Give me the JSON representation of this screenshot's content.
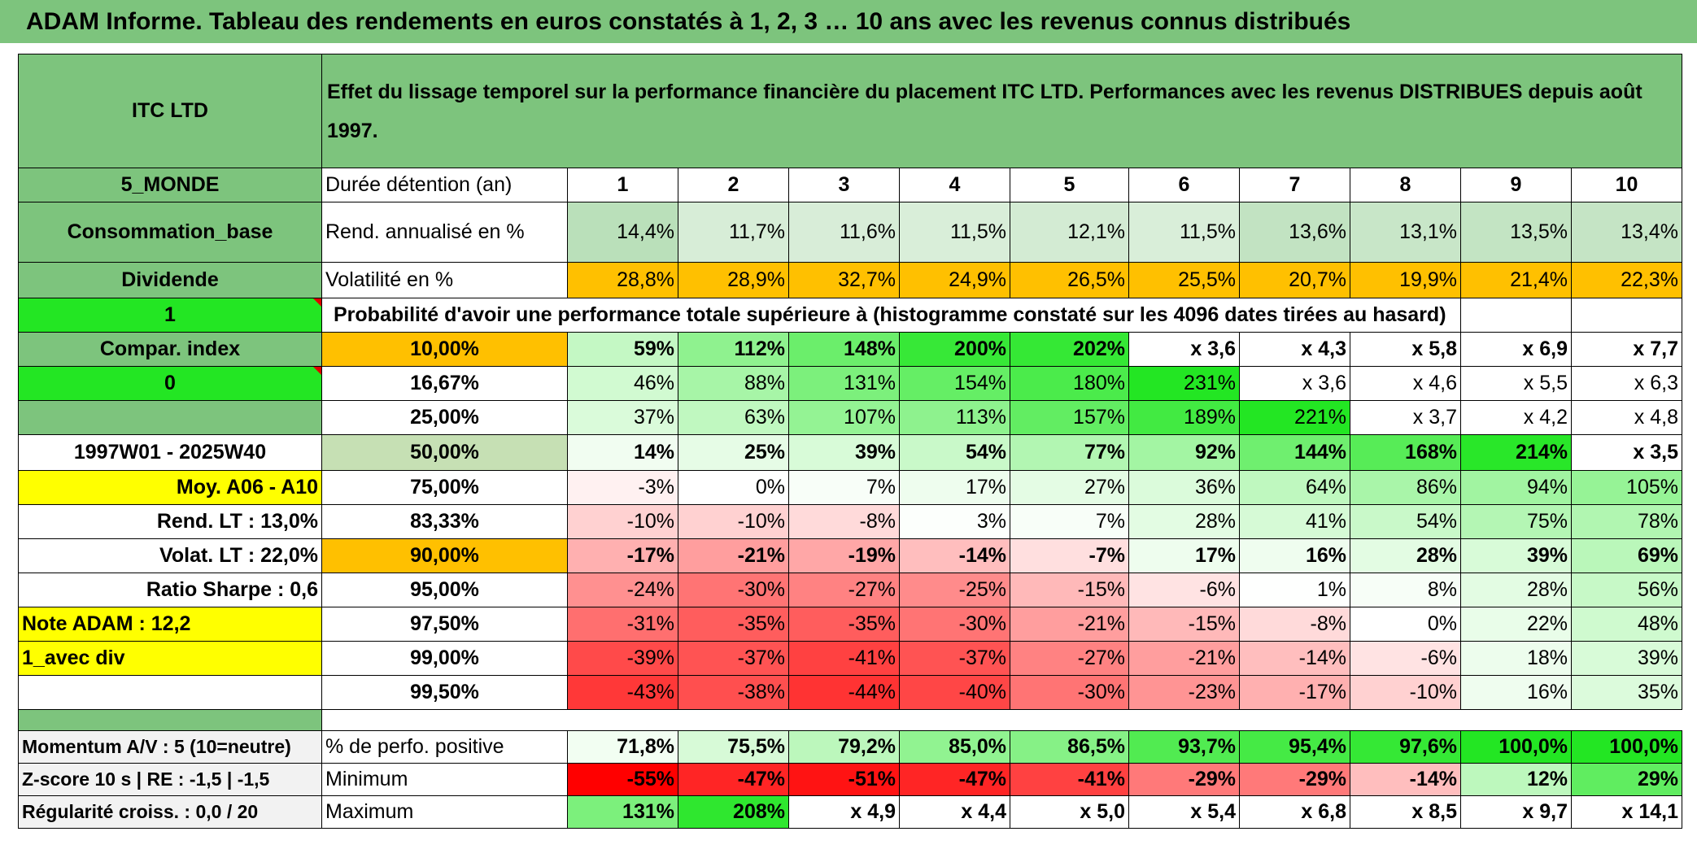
{
  "title": "ADAM Informe. Tableau des rendements en euros constatés à 1, 2, 3 … 10 ans avec les revenus connus distribués",
  "header": {
    "fund": "ITC LTD",
    "description": "Effet du lissage temporel sur la performance financière du placement ITC LTD. Performances avec les revenus DISTRIBUES depuis août 1997."
  },
  "side": {
    "zone": "5_MONDE",
    "sector": "Consommation_base",
    "dividend_label": "Dividende",
    "dividend_value": "1",
    "compar_label": "Compar. index",
    "compar_value": "0",
    "period": "1997W01 - 2025W40",
    "moy": "Moy. A06 - A10",
    "rend_lt": "Rend. LT :   13,0%",
    "volat_lt": "Volat. LT :   22,0%",
    "sharpe": "Ratio Sharpe :    0,6",
    "note": "Note ADAM : 12,2",
    "avec_div": "1_avec div",
    "momentum": "Momentum A/V : 5 (10=neutre)",
    "zscore": "Z-score 10 s | RE : -1,5 | -1,5",
    "regularite": "Régularité croiss. : 0,0 / 20"
  },
  "labels": {
    "duree": "Durée détention (an)",
    "rend": "Rend. annualisé en %",
    "vol": "Volatilité en %",
    "proba": "Probabilité d'avoir une performance totale supérieure à (histogramme constaté sur les 4096 dates tirées au hasard)",
    "positive": "% de perfo. positive",
    "minimum": "Minimum",
    "maximum": "Maximum"
  },
  "years": [
    "1",
    "2",
    "3",
    "4",
    "5",
    "6",
    "7",
    "8",
    "9",
    "10"
  ],
  "rend": [
    "14,4%",
    "11,7%",
    "11,6%",
    "11,5%",
    "12,1%",
    "11,5%",
    "13,6%",
    "13,1%",
    "13,5%",
    "13,4%"
  ],
  "vol": [
    "28,8%",
    "28,9%",
    "32,7%",
    "24,9%",
    "26,5%",
    "25,5%",
    "20,7%",
    "19,9%",
    "21,4%",
    "22,3%"
  ],
  "quantiles": [
    {
      "p": "10,00%",
      "v": [
        "59%",
        "112%",
        "148%",
        "200%",
        "202%",
        "x 3,6",
        "x 4,3",
        "x 5,8",
        "x 6,9",
        "x 7,7"
      ]
    },
    {
      "p": "16,67%",
      "v": [
        "46%",
        "88%",
        "131%",
        "154%",
        "180%",
        "231%",
        "x 3,6",
        "x 4,6",
        "x 5,5",
        "x 6,3"
      ]
    },
    {
      "p": "25,00%",
      "v": [
        "37%",
        "63%",
        "107%",
        "113%",
        "157%",
        "189%",
        "221%",
        "x 3,7",
        "x 4,2",
        "x 4,8"
      ]
    },
    {
      "p": "50,00%",
      "v": [
        "14%",
        "25%",
        "39%",
        "54%",
        "77%",
        "92%",
        "144%",
        "168%",
        "214%",
        "x 3,5"
      ]
    },
    {
      "p": "75,00%",
      "v": [
        "-3%",
        "0%",
        "7%",
        "17%",
        "27%",
        "36%",
        "64%",
        "86%",
        "94%",
        "105%"
      ]
    },
    {
      "p": "83,33%",
      "v": [
        "-10%",
        "-10%",
        "-8%",
        "3%",
        "7%",
        "28%",
        "41%",
        "54%",
        "75%",
        "78%"
      ]
    },
    {
      "p": "90,00%",
      "v": [
        "-17%",
        "-21%",
        "-19%",
        "-14%",
        "-7%",
        "17%",
        "16%",
        "28%",
        "39%",
        "69%"
      ]
    },
    {
      "p": "95,00%",
      "v": [
        "-24%",
        "-30%",
        "-27%",
        "-25%",
        "-15%",
        "-6%",
        "1%",
        "8%",
        "28%",
        "56%"
      ]
    },
    {
      "p": "97,50%",
      "v": [
        "-31%",
        "-35%",
        "-35%",
        "-30%",
        "-21%",
        "-15%",
        "-8%",
        "0%",
        "22%",
        "48%"
      ]
    },
    {
      "p": "99,00%",
      "v": [
        "-39%",
        "-37%",
        "-41%",
        "-37%",
        "-27%",
        "-21%",
        "-14%",
        "-6%",
        "18%",
        "39%"
      ]
    },
    {
      "p": "99,50%",
      "v": [
        "-43%",
        "-38%",
        "-44%",
        "-40%",
        "-30%",
        "-23%",
        "-17%",
        "-10%",
        "16%",
        "35%"
      ]
    }
  ],
  "positive": [
    "71,8%",
    "75,5%",
    "79,2%",
    "85,0%",
    "86,5%",
    "93,7%",
    "95,4%",
    "97,6%",
    "100,0%",
    "100,0%"
  ],
  "minimum": [
    "-55%",
    "-47%",
    "-51%",
    "-47%",
    "-41%",
    "-29%",
    "-29%",
    "-14%",
    "12%",
    "29%"
  ],
  "maximum": [
    "131%",
    "208%",
    "x 4,9",
    "x 4,4",
    "x 5,0",
    "x 5,4",
    "x 6,8",
    "x 8,5",
    "x 9,7",
    "x 14,1"
  ],
  "colors": {
    "header_green": "#7dc47d",
    "bright_green": "#23e623",
    "amber": "#ffc000",
    "yellow": "#ffff00",
    "red_text": "#e00000",
    "scale_positive": "#23e623",
    "scale_negative": "#ff0000"
  }
}
